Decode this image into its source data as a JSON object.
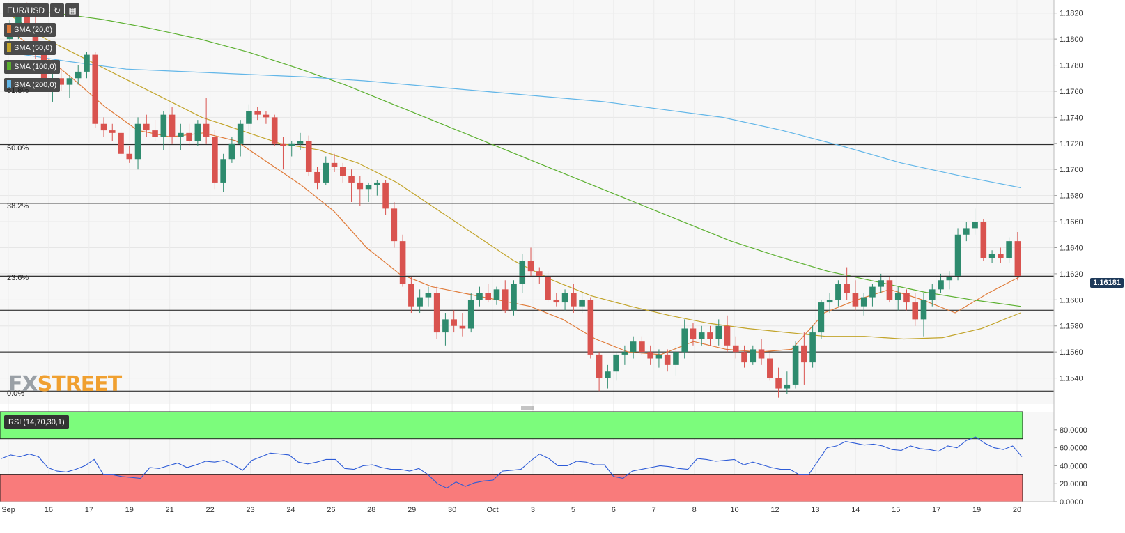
{
  "toolbar": {
    "symbol": "EUR/USD",
    "refresh_icon": "refresh-icon",
    "calendar_icon": "calendar-icon"
  },
  "legends": [
    {
      "label": "SMA (20,0)",
      "color": "#e07b39"
    },
    {
      "label": "SMA (50,0)",
      "color": "#c2a42a"
    },
    {
      "label": "SMA (100,0)",
      "color": "#5bb02f"
    },
    {
      "label": "SMA (200,0)",
      "color": "#62b6e8"
    }
  ],
  "fibo_labels": [
    "61.8%",
    "50.0%",
    "38.2%",
    "23.6%",
    "0.0%"
  ],
  "current_price": "1.16181",
  "rsi_label": "RSI (14,70,30,1)",
  "logo": {
    "fx": "FX",
    "street": "STREET"
  },
  "chart_data": [
    {
      "type": "candlestick",
      "title": "EUR/USD",
      "ylim": [
        1.152,
        1.183
      ],
      "y_ticks": [
        "1.1820",
        "1.1800",
        "1.1780",
        "1.1760",
        "1.1740",
        "1.1720",
        "1.1700",
        "1.1680",
        "1.1660",
        "1.1640",
        "1.1620",
        "1.1600",
        "1.1580",
        "1.1560",
        "1.1540"
      ],
      "x_tick_labels": [
        "Sep",
        "16",
        "17",
        "19",
        "21",
        "22",
        "23",
        "24",
        "26",
        "28",
        "29",
        "30",
        "Oct",
        "3",
        "5",
        "6",
        "7",
        "8",
        "10",
        "12",
        "13",
        "14",
        "15",
        "17",
        "19",
        "20"
      ],
      "fibonacci_levels": [
        {
          "label": "61.8%",
          "price": 1.1764
        },
        {
          "label": "50.0%",
          "price": 1.1719
        },
        {
          "label": "38.2%",
          "price": 1.1674
        },
        {
          "label": "23.6%",
          "price": 1.1619
        },
        {
          "label": "0.0%",
          "price": 1.153
        }
      ],
      "horizontal_levels": [
        1.1592,
        1.156
      ],
      "last_price": 1.16181,
      "up_color": "#2e8b6e",
      "down_color": "#d9534f",
      "candles": [
        [
          1.18,
          1.1815,
          1.179,
          1.181
        ],
        [
          1.181,
          1.1825,
          1.18,
          1.1818
        ],
        [
          1.1818,
          1.1828,
          1.1805,
          1.1812
        ],
        [
          1.1812,
          1.182,
          1.1785,
          1.179
        ],
        [
          1.179,
          1.1795,
          1.176,
          1.1768
        ],
        [
          1.1768,
          1.1775,
          1.1752,
          1.177
        ],
        [
          1.177,
          1.1778,
          1.176,
          1.1765
        ],
        [
          1.1765,
          1.1772,
          1.1755,
          1.177
        ],
        [
          1.177,
          1.178,
          1.1765,
          1.1775
        ],
        [
          1.1775,
          1.179,
          1.177,
          1.1788
        ],
        [
          1.1788,
          1.179,
          1.1732,
          1.1735
        ],
        [
          1.1735,
          1.174,
          1.1725,
          1.173
        ],
        [
          1.173,
          1.1735,
          1.1722,
          1.1728
        ],
        [
          1.1728,
          1.1732,
          1.171,
          1.1712
        ],
        [
          1.1712,
          1.1718,
          1.1705,
          1.1708
        ],
        [
          1.1708,
          1.174,
          1.17,
          1.1735
        ],
        [
          1.1735,
          1.1742,
          1.1725,
          1.173
        ],
        [
          1.173,
          1.1738,
          1.1722,
          1.1725
        ],
        [
          1.1725,
          1.1745,
          1.1715,
          1.1742
        ],
        [
          1.1742,
          1.1748,
          1.172,
          1.1725
        ],
        [
          1.1725,
          1.1735,
          1.1715,
          1.1728
        ],
        [
          1.1728,
          1.1735,
          1.1718,
          1.1722
        ],
        [
          1.1722,
          1.1738,
          1.1718,
          1.1735
        ],
        [
          1.1735,
          1.1755,
          1.172,
          1.1725
        ],
        [
          1.1725,
          1.173,
          1.1685,
          1.169
        ],
        [
          1.169,
          1.1712,
          1.1683,
          1.1708
        ],
        [
          1.1708,
          1.1725,
          1.1705,
          1.172
        ],
        [
          1.172,
          1.1738,
          1.171,
          1.1735
        ],
        [
          1.1735,
          1.175,
          1.173,
          1.1745
        ],
        [
          1.1745,
          1.1748,
          1.1738,
          1.1742
        ],
        [
          1.1742,
          1.1745,
          1.1735,
          1.174
        ],
        [
          1.174,
          1.1742,
          1.1718,
          1.172
        ],
        [
          1.172,
          1.1725,
          1.17,
          1.1718
        ],
        [
          1.1718,
          1.1722,
          1.171,
          1.172
        ],
        [
          1.172,
          1.1728,
          1.1715,
          1.1722
        ],
        [
          1.1722,
          1.1726,
          1.1695,
          1.1698
        ],
        [
          1.1698,
          1.1702,
          1.1685,
          1.169
        ],
        [
          1.169,
          1.171,
          1.1688,
          1.1705
        ],
        [
          1.1705,
          1.1712,
          1.1698,
          1.1702
        ],
        [
          1.1702,
          1.1705,
          1.169,
          1.1695
        ],
        [
          1.1695,
          1.17,
          1.1675,
          1.169
        ],
        [
          1.169,
          1.1695,
          1.1672,
          1.1685
        ],
        [
          1.1685,
          1.169,
          1.1675,
          1.1688
        ],
        [
          1.1688,
          1.1692,
          1.168,
          1.169
        ],
        [
          1.169,
          1.1692,
          1.1665,
          1.167
        ],
        [
          1.167,
          1.1675,
          1.164,
          1.1645
        ],
        [
          1.1645,
          1.165,
          1.161,
          1.1612
        ],
        [
          1.1612,
          1.1618,
          1.159,
          1.1595
        ],
        [
          1.1595,
          1.1608,
          1.159,
          1.1602
        ],
        [
          1.1602,
          1.161,
          1.1595,
          1.1605
        ],
        [
          1.1605,
          1.161,
          1.157,
          1.1575
        ],
        [
          1.1575,
          1.159,
          1.1565,
          1.1585
        ],
        [
          1.1585,
          1.1592,
          1.1575,
          1.158
        ],
        [
          1.158,
          1.159,
          1.1572,
          1.1578
        ],
        [
          1.1578,
          1.1605,
          1.1575,
          1.16
        ],
        [
          1.16,
          1.161,
          1.1595,
          1.1605
        ],
        [
          1.1605,
          1.1612,
          1.1598,
          1.16
        ],
        [
          1.16,
          1.161,
          1.1596,
          1.1608
        ],
        [
          1.1608,
          1.1615,
          1.159,
          1.1592
        ],
        [
          1.1592,
          1.1615,
          1.1588,
          1.1612
        ],
        [
          1.1612,
          1.1635,
          1.1605,
          1.163
        ],
        [
          1.163,
          1.164,
          1.1618,
          1.1622
        ],
        [
          1.1622,
          1.1625,
          1.1612,
          1.1618
        ],
        [
          1.1618,
          1.1622,
          1.1598,
          1.16
        ],
        [
          1.16,
          1.1605,
          1.1595,
          1.1598
        ],
        [
          1.1598,
          1.1608,
          1.1592,
          1.1605
        ],
        [
          1.1605,
          1.1612,
          1.159,
          1.1595
        ],
        [
          1.1595,
          1.1605,
          1.159,
          1.16
        ],
        [
          1.16,
          1.1602,
          1.1555,
          1.1558
        ],
        [
          1.1558,
          1.156,
          1.153,
          1.154
        ],
        [
          1.154,
          1.155,
          1.1532,
          1.1545
        ],
        [
          1.1545,
          1.156,
          1.1538,
          1.1558
        ],
        [
          1.1558,
          1.1565,
          1.155,
          1.156
        ],
        [
          1.156,
          1.1572,
          1.1555,
          1.1568
        ],
        [
          1.1568,
          1.1572,
          1.1558,
          1.156
        ],
        [
          1.156,
          1.1565,
          1.155,
          1.1555
        ],
        [
          1.1555,
          1.1562,
          1.1548,
          1.1558
        ],
        [
          1.1558,
          1.1562,
          1.1545,
          1.155
        ],
        [
          1.155,
          1.1565,
          1.1542,
          1.156
        ],
        [
          1.156,
          1.1585,
          1.1555,
          1.1578
        ],
        [
          1.1578,
          1.1582,
          1.1565,
          1.157
        ],
        [
          1.157,
          1.158,
          1.1565,
          1.1575
        ],
        [
          1.1575,
          1.158,
          1.1565,
          1.157
        ],
        [
          1.157,
          1.1585,
          1.1565,
          1.158
        ],
        [
          1.158,
          1.1588,
          1.156,
          1.1565
        ],
        [
          1.1565,
          1.1572,
          1.1555,
          1.156
        ],
        [
          1.156,
          1.1565,
          1.1548,
          1.1552
        ],
        [
          1.1552,
          1.1565,
          1.155,
          1.1562
        ],
        [
          1.1562,
          1.157,
          1.155,
          1.1555
        ],
        [
          1.1555,
          1.156,
          1.1538,
          1.154
        ],
        [
          1.154,
          1.1548,
          1.1525,
          1.1532
        ],
        [
          1.1532,
          1.1545,
          1.1528,
          1.1535
        ],
        [
          1.1535,
          1.1568,
          1.1532,
          1.1565
        ],
        [
          1.1565,
          1.1575,
          1.1535,
          1.1552
        ],
        [
          1.1552,
          1.158,
          1.1548,
          1.1575
        ],
        [
          1.1575,
          1.16,
          1.157,
          1.1598
        ],
        [
          1.1598,
          1.1605,
          1.159,
          1.16
        ],
        [
          1.16,
          1.1615,
          1.1595,
          1.1612
        ],
        [
          1.1612,
          1.1625,
          1.16,
          1.1605
        ],
        [
          1.1605,
          1.1615,
          1.1592,
          1.1595
        ],
        [
          1.1595,
          1.1605,
          1.1588,
          1.1602
        ],
        [
          1.1602,
          1.1612,
          1.1595,
          1.161
        ],
        [
          1.161,
          1.162,
          1.1605,
          1.1615
        ],
        [
          1.1615,
          1.1618,
          1.1598,
          1.16
        ],
        [
          1.16,
          1.161,
          1.1592,
          1.1605
        ],
        [
          1.1605,
          1.1608,
          1.1592,
          1.1598
        ],
        [
          1.1598,
          1.1605,
          1.158,
          1.1585
        ],
        [
          1.1585,
          1.1605,
          1.1572,
          1.16
        ],
        [
          1.16,
          1.1612,
          1.1595,
          1.1608
        ],
        [
          1.1608,
          1.162,
          1.1605,
          1.1615
        ],
        [
          1.1615,
          1.1622,
          1.1608,
          1.1618
        ],
        [
          1.1618,
          1.1655,
          1.1615,
          1.165
        ],
        [
          1.165,
          1.166,
          1.1645,
          1.1655
        ],
        [
          1.1655,
          1.167,
          1.165,
          1.166
        ],
        [
          1.166,
          1.1662,
          1.163,
          1.1632
        ],
        [
          1.1632,
          1.1638,
          1.1628,
          1.1635
        ],
        [
          1.1635,
          1.164,
          1.1628,
          1.1632
        ],
        [
          1.1632,
          1.1648,
          1.1628,
          1.1645
        ],
        [
          1.1645,
          1.1652,
          1.1615,
          1.1618
        ]
      ],
      "sma": {
        "SMA (20,0)": [
          1.1808,
          1.179,
          1.177,
          1.1748,
          1.173,
          1.1725,
          1.1728,
          1.1722,
          1.1705,
          1.1688,
          1.1668,
          1.164,
          1.162,
          1.161,
          1.1605,
          1.16,
          1.1595,
          1.1585,
          1.157,
          1.156,
          1.1558,
          1.1568,
          1.1562,
          1.156,
          1.1562,
          1.159,
          1.16,
          1.1608,
          1.16,
          1.159,
          1.1605,
          1.1618
        ],
        "SMA (50,0)": [
          1.182,
          1.18,
          1.1785,
          1.177,
          1.1755,
          1.174,
          1.173,
          1.172,
          1.1715,
          1.1705,
          1.169,
          1.167,
          1.165,
          1.163,
          1.1615,
          1.1603,
          1.1595,
          1.1588,
          1.1582,
          1.1578,
          1.1575,
          1.1572,
          1.1572,
          1.157,
          1.1571,
          1.1578,
          1.159
        ],
        "SMA (100,0)": [
          1.1822,
          1.182,
          1.1815,
          1.1808,
          1.18,
          1.179,
          1.1778,
          1.1765,
          1.175,
          1.1735,
          1.172,
          1.1705,
          1.169,
          1.1675,
          1.166,
          1.1645,
          1.1633,
          1.1622,
          1.1614,
          1.1606,
          1.16,
          1.1595
        ],
        "SMA (200,0)": [
          1.179,
          1.1783,
          1.1777,
          1.1775,
          1.1773,
          1.1771,
          1.1768,
          1.1764,
          1.176,
          1.1756,
          1.1752,
          1.1746,
          1.174,
          1.173,
          1.1718,
          1.1705,
          1.1695,
          1.1686
        ]
      }
    },
    {
      "type": "line",
      "title": "RSI (14,70,30,1)",
      "ylim": [
        0,
        100
      ],
      "y_ticks": [
        "80.0000",
        "60.0000",
        "40.0000",
        "20.0000",
        "0.0000"
      ],
      "overbought": 70,
      "oversold": 30,
      "line_color": "#2d5bd7",
      "values": [
        48,
        52,
        50,
        53,
        50,
        38,
        34,
        33,
        36,
        40,
        47,
        30,
        30,
        28,
        27,
        26,
        38,
        37,
        40,
        43,
        38,
        41,
        45,
        44,
        46,
        41,
        35,
        46,
        50,
        54,
        53,
        52,
        44,
        42,
        44,
        47,
        47,
        37,
        36,
        40,
        41,
        38,
        36,
        36,
        34,
        37,
        30,
        20,
        15,
        22,
        17,
        21,
        23,
        24,
        34,
        35,
        36,
        45,
        53,
        48,
        40,
        40,
        45,
        44,
        41,
        41,
        28,
        26,
        34,
        36,
        38,
        40,
        39,
        37,
        36,
        48,
        47,
        45,
        46,
        47,
        41,
        44,
        41,
        38,
        36,
        36,
        30,
        30,
        45,
        60,
        62,
        67,
        65,
        63,
        64,
        62,
        58,
        57,
        62,
        59,
        58,
        56,
        62,
        60,
        68,
        72,
        65,
        60,
        58,
        62,
        50
      ]
    }
  ]
}
